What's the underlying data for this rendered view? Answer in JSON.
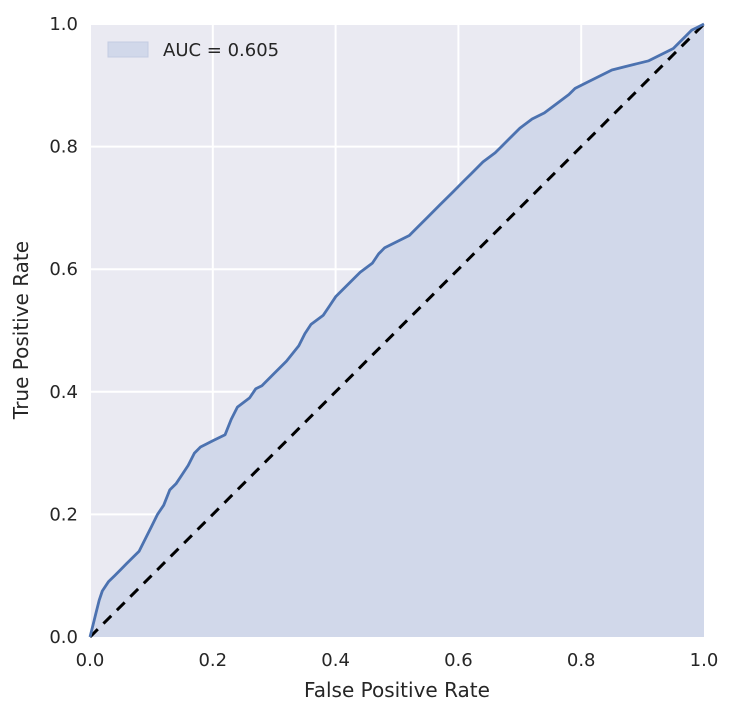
{
  "chart_data": {
    "type": "area",
    "title": "",
    "xlabel": "False Positive Rate",
    "ylabel": "True Positive Rate",
    "xlim": [
      0.0,
      1.0
    ],
    "ylim": [
      0.0,
      1.0
    ],
    "grid": true,
    "legend_position": "top-left",
    "xticks": [
      "0.0",
      "0.2",
      "0.4",
      "0.6",
      "0.8",
      "1.0"
    ],
    "yticks": [
      "0.0",
      "0.2",
      "0.4",
      "0.6",
      "0.8",
      "1.0"
    ],
    "series": [
      {
        "name": "AUC = 0.605",
        "color": "#4c72b0",
        "fill_color": "#d1d8ea",
        "x": [
          0.0,
          0.005,
          0.01,
          0.015,
          0.02,
          0.03,
          0.04,
          0.05,
          0.06,
          0.07,
          0.08,
          0.09,
          0.1,
          0.11,
          0.12,
          0.13,
          0.14,
          0.15,
          0.16,
          0.17,
          0.18,
          0.19,
          0.2,
          0.22,
          0.23,
          0.24,
          0.26,
          0.27,
          0.28,
          0.29,
          0.3,
          0.32,
          0.34,
          0.35,
          0.36,
          0.38,
          0.39,
          0.4,
          0.42,
          0.44,
          0.46,
          0.47,
          0.48,
          0.5,
          0.52,
          0.53,
          0.55,
          0.57,
          0.59,
          0.61,
          0.62,
          0.64,
          0.66,
          0.67,
          0.68,
          0.7,
          0.72,
          0.74,
          0.76,
          0.78,
          0.79,
          0.81,
          0.83,
          0.85,
          0.87,
          0.89,
          0.91,
          0.93,
          0.95,
          0.96,
          0.97,
          0.98,
          0.99,
          1.0
        ],
        "y": [
          0.0,
          0.02,
          0.04,
          0.06,
          0.075,
          0.09,
          0.1,
          0.11,
          0.12,
          0.13,
          0.14,
          0.16,
          0.18,
          0.2,
          0.215,
          0.24,
          0.25,
          0.265,
          0.28,
          0.3,
          0.31,
          0.315,
          0.32,
          0.33,
          0.355,
          0.375,
          0.39,
          0.405,
          0.41,
          0.42,
          0.43,
          0.45,
          0.475,
          0.495,
          0.51,
          0.525,
          0.54,
          0.555,
          0.575,
          0.595,
          0.61,
          0.625,
          0.635,
          0.645,
          0.655,
          0.665,
          0.685,
          0.705,
          0.725,
          0.745,
          0.755,
          0.775,
          0.79,
          0.8,
          0.81,
          0.83,
          0.845,
          0.855,
          0.87,
          0.885,
          0.895,
          0.905,
          0.915,
          0.925,
          0.93,
          0.935,
          0.94,
          0.95,
          0.96,
          0.97,
          0.98,
          0.99,
          0.995,
          1.0
        ]
      }
    ],
    "reference_line": {
      "x": [
        0.0,
        1.0
      ],
      "y": [
        0.0,
        1.0
      ],
      "color": "#000000",
      "style": "dashed"
    }
  }
}
